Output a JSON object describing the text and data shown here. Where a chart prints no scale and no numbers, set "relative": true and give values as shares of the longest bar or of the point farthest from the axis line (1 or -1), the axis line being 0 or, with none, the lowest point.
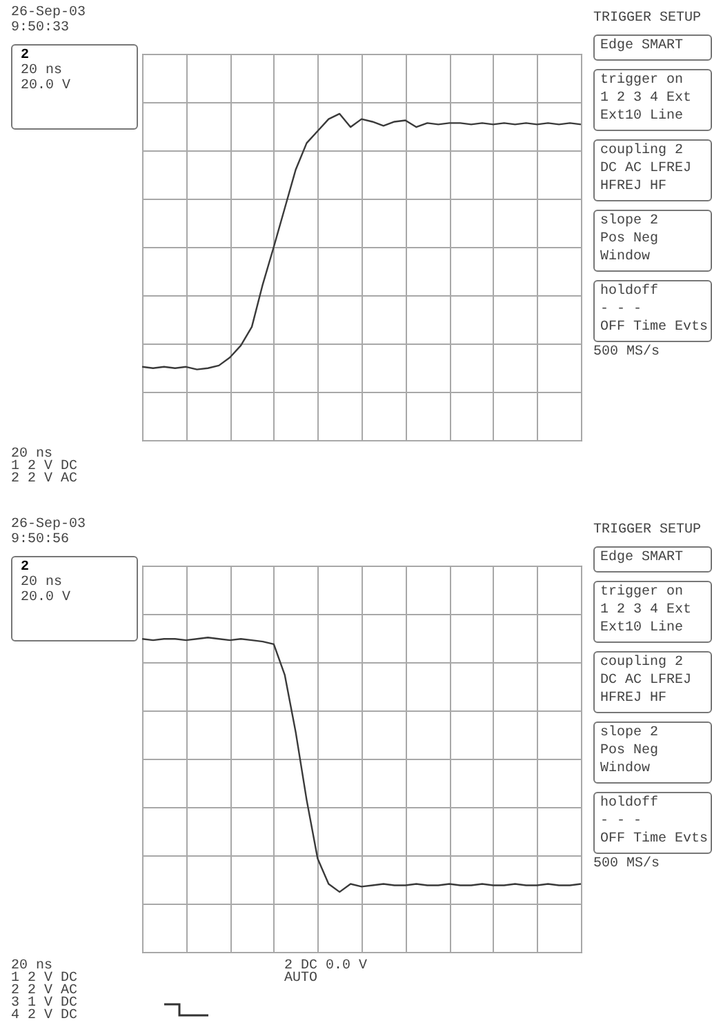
{
  "chart_data": [
    {
      "type": "line",
      "relative": true,
      "grid": true,
      "color": "#3a3a3a",
      "categories": [
        null,
        null,
        null,
        null,
        null,
        null,
        null,
        null,
        null,
        null,
        null,
        null,
        null,
        null,
        null,
        null,
        null,
        null,
        null,
        null,
        null,
        null,
        null,
        null,
        null,
        null,
        null,
        null,
        null,
        null,
        null,
        null,
        null,
        null,
        null,
        null,
        null,
        null,
        null,
        null,
        null
      ],
      "values": [
        -0.9,
        -0.91,
        -0.9,
        -0.91,
        -0.9,
        -0.92,
        -0.91,
        -0.89,
        -0.83,
        -0.74,
        -0.6,
        -0.28,
        0,
        0.29,
        0.58,
        0.78,
        0.87,
        0.96,
        1.0,
        0.9,
        0.96,
        0.94,
        0.91,
        0.94,
        0.95,
        0.9,
        0.93,
        0.92,
        0.93,
        0.93,
        0.92,
        0.93,
        0.92,
        0.93,
        0.92,
        0.93,
        0.92,
        0.93,
        0.92,
        0.93,
        0.92
      ],
      "annotations": [
        "26-Sep-03",
        "9:50:33",
        "2",
        "20 ns",
        "20.0 V",
        "TRIGGER SETUP",
        "Edge SMART",
        "trigger on",
        "1 2 3 4 Ext",
        "Ext10 Line",
        "coupling 2",
        "DC AC LFREJ",
        "HFREJ HF",
        "slope 2",
        "Pos Neg",
        "Window",
        "holdoff",
        "- - -",
        "OFF Time Evts",
        "500 MS/s",
        "20 ns",
        "1 2 V DC",
        "2 2 V AC"
      ]
    },
    {
      "type": "line",
      "relative": true,
      "grid": true,
      "color": "#3a3a3a",
      "categories": [
        null,
        null,
        null,
        null,
        null,
        null,
        null,
        null,
        null,
        null,
        null,
        null,
        null,
        null,
        null,
        null,
        null,
        null,
        null,
        null,
        null,
        null,
        null,
        null,
        null,
        null,
        null,
        null,
        null,
        null,
        null,
        null,
        null,
        null,
        null,
        null,
        null,
        null,
        null,
        null,
        null
      ],
      "values": [
        0.9,
        0.89,
        0.9,
        0.9,
        0.89,
        0.9,
        0.91,
        0.9,
        0.89,
        0.9,
        0.89,
        0.88,
        0.86,
        0.63,
        0.2,
        -0.31,
        -0.75,
        -0.94,
        -1.0,
        -0.94,
        -0.96,
        -0.95,
        -0.94,
        -0.95,
        -0.95,
        -0.94,
        -0.95,
        -0.95,
        -0.94,
        -0.95,
        -0.95,
        -0.94,
        -0.95,
        -0.95,
        -0.94,
        -0.95,
        -0.95,
        -0.94,
        -0.95,
        -0.95,
        -0.94
      ],
      "annotations": [
        "26-Sep-03",
        "9:50:56",
        "2",
        "20 ns",
        "20.0 V",
        "TRIGGER SETUP",
        "Edge SMART",
        "trigger on",
        "1 2 3 4 Ext",
        "Ext10 Line",
        "coupling 2",
        "DC AC LFREJ",
        "HFREJ HF",
        "slope 2",
        "Pos Neg",
        "Window",
        "holdoff",
        "- - -",
        "OFF Time Evts",
        "500 MS/s",
        "20 ns",
        "1 2 V DC",
        "2 2 V AC",
        "3 1 V DC",
        "4 2 V DC",
        "2 DC 0.0 V",
        "AUTO"
      ]
    }
  ]
}
